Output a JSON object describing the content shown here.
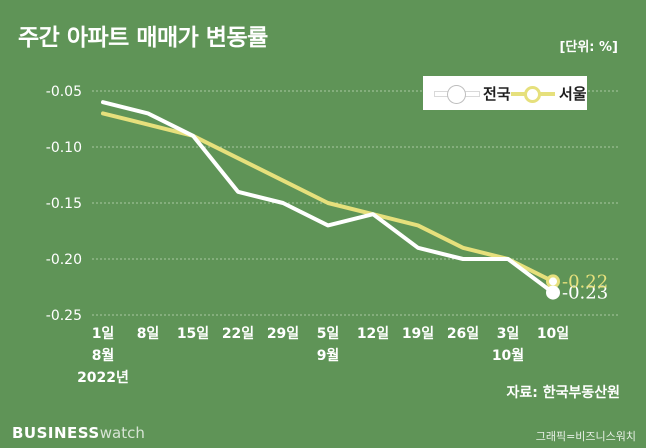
{
  "header": {
    "title": "주간 아파트 매매가 변동률",
    "unit": "[단위: %]"
  },
  "footer": {
    "source": "자료: 한국부동산원",
    "brand_main": "BUSINESS",
    "brand_sub": "watch",
    "credit": "그래픽=비즈니스워치"
  },
  "colors": {
    "background": "#5f9457",
    "national": "#ffffff",
    "seoul": "#e6e07c",
    "grid": "#a9c9a1"
  },
  "chart_data": {
    "type": "line",
    "title": "주간 아파트 매매가 변동률",
    "unit": "[단위: %]",
    "categories": [
      "1일",
      "8일",
      "15일",
      "22일",
      "29일",
      "5일",
      "12일",
      "19일",
      "26일",
      "3일",
      "10일"
    ],
    "category_sublabels": [
      [
        "8월",
        "2022년"
      ],
      [],
      [],
      [],
      [],
      [
        "9월"
      ],
      [],
      [],
      [],
      [
        "10월"
      ],
      []
    ],
    "ylim": [
      -0.25,
      -0.05
    ],
    "yticks": [
      "-0.05",
      "-0.10",
      "-0.15",
      "-0.20",
      "-0.25"
    ],
    "ytick_values": [
      -0.05,
      -0.1,
      -0.15,
      -0.2,
      -0.25
    ],
    "grid": true,
    "legend_position": "top-right",
    "series": [
      {
        "name": "전국",
        "color": "#ffffff",
        "values": [
          -0.06,
          -0.07,
          -0.09,
          -0.14,
          -0.15,
          -0.17,
          -0.16,
          -0.19,
          -0.2,
          -0.2,
          -0.23
        ],
        "end_label": "-0.23"
      },
      {
        "name": "서울",
        "color": "#e6e07c",
        "values": [
          -0.07,
          -0.08,
          -0.09,
          -0.11,
          -0.13,
          -0.15,
          -0.16,
          -0.17,
          -0.19,
          -0.2,
          -0.22
        ],
        "end_label": "-0.22"
      }
    ]
  }
}
